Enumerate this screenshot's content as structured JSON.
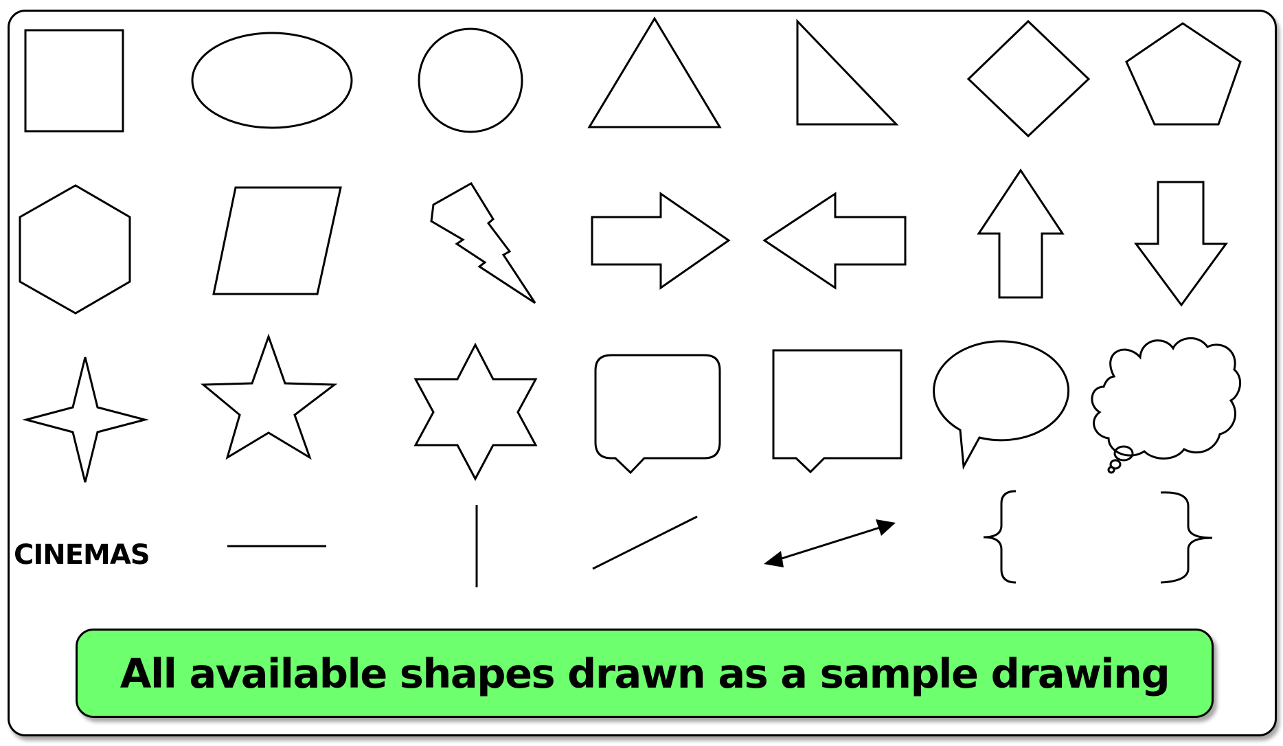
{
  "text_label": "CINEMAS",
  "caption": "All available shapes drawn as a sample drawing",
  "colors": {
    "stroke": "#000000",
    "banner_fill": "#6dff6d",
    "background": "#ffffff"
  }
}
